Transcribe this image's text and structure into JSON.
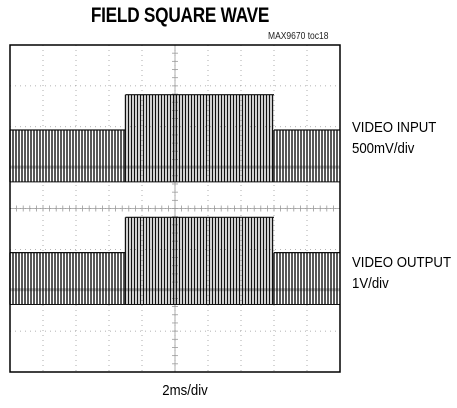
{
  "chart_data": {
    "type": "line",
    "title": "FIELD SQUARE WAVE",
    "figure_id": "MAX9670 toc18",
    "xlabel": "2ms/div",
    "x_divisions": 10,
    "y_divisions": 8,
    "grid": true,
    "series": [
      {
        "name": "VIDEO INPUT",
        "scale": "500mV/div",
        "segments": [
          {
            "from_div": 0,
            "to_div": 3.5,
            "level_div": 1.0
          },
          {
            "from_div": 3.5,
            "to_div": 8.0,
            "level_div": 2.2
          },
          {
            "from_div": 8.0,
            "to_div": 10.0,
            "level_div": 1.0
          }
        ],
        "baseline_div": 0.0
      },
      {
        "name": "VIDEO OUTPUT",
        "scale": "1V/div",
        "segments": [
          {
            "from_div": 0,
            "to_div": 3.5,
            "level_div": 1.0
          },
          {
            "from_div": 3.5,
            "to_div": 8.0,
            "level_div": 2.2
          },
          {
            "from_div": 8.0,
            "to_div": 10.0,
            "level_div": 1.0
          }
        ],
        "baseline_div": 0.0
      }
    ]
  },
  "colors": {
    "trace": "#111111",
    "grid": "#9a9a9a",
    "frame": "#000000"
  }
}
